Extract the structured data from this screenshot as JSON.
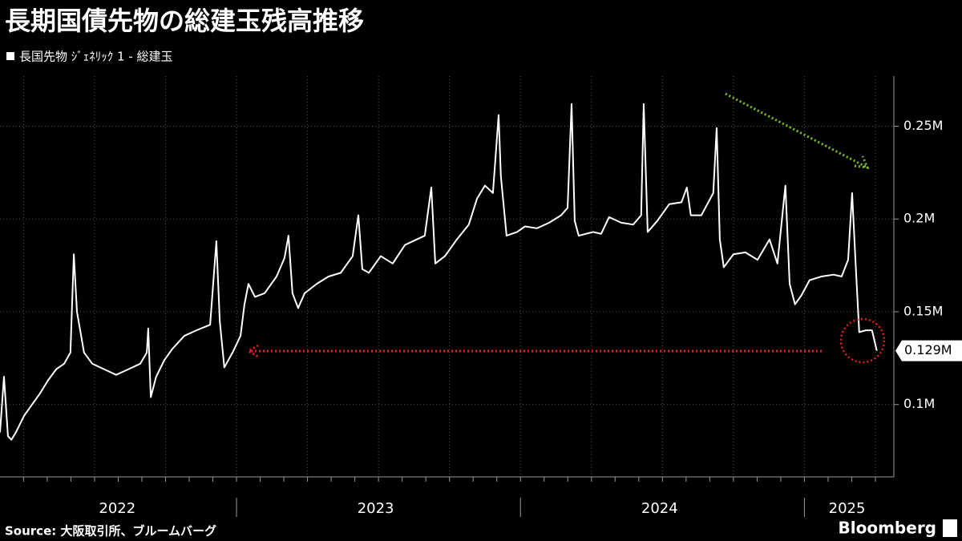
{
  "chart_data": {
    "type": "line",
    "title": "長期国債先物の総建玉残高推移",
    "series": [
      {
        "name": "長国先物 ｼﾞｪﾈﾘｯｸ 1 - 総建玉",
        "color": "#ffffff",
        "x": [
          2022.167,
          2022.181,
          2022.195,
          2022.207,
          2022.223,
          2022.252,
          2022.28,
          2022.308,
          2022.336,
          2022.365,
          2022.393,
          2022.415,
          2022.427,
          2022.438,
          2022.463,
          2022.492,
          2022.534,
          2022.576,
          2022.619,
          2022.661,
          2022.684,
          2022.689,
          2022.698,
          2022.717,
          2022.746,
          2022.774,
          2022.816,
          2022.859,
          2022.907,
          2022.929,
          2022.941,
          2022.957,
          2022.986,
          2023.014,
          2023.028,
          2023.042,
          2023.065,
          2023.099,
          2023.141,
          2023.169,
          2023.183,
          2023.197,
          2023.217,
          2023.24,
          2023.282,
          2023.324,
          2023.367,
          2023.409,
          2023.429,
          2023.443,
          2023.466,
          2023.508,
          2023.55,
          2023.593,
          2023.635,
          2023.663,
          2023.686,
          2023.7,
          2023.734,
          2023.776,
          2023.818,
          2023.847,
          2023.875,
          2023.903,
          2023.923,
          2023.931,
          2023.951,
          2023.988,
          2024.016,
          2024.058,
          2024.101,
          2024.143,
          2024.166,
          2024.18,
          2024.191,
          2024.205,
          2024.256,
          2024.284,
          2024.312,
          2024.355,
          2024.397,
          2024.425,
          2024.434,
          2024.448,
          2024.482,
          2024.524,
          2024.567,
          2024.586,
          2024.6,
          2024.637,
          2024.679,
          2024.691,
          2024.702,
          2024.716,
          2024.75,
          2024.792,
          2024.835,
          2024.877,
          2024.905,
          2024.933,
          2024.948,
          2024.967,
          2024.99,
          2025.018,
          2025.06,
          2025.103,
          2025.131,
          2025.154,
          2025.168,
          2025.182,
          2025.193,
          2025.216,
          2025.238,
          2025.255
        ],
        "values": [
          0.085,
          0.115,
          0.083,
          0.081,
          0.085,
          0.094,
          0.1,
          0.106,
          0.113,
          0.119,
          0.122,
          0.128,
          0.181,
          0.15,
          0.128,
          0.122,
          0.119,
          0.116,
          0.119,
          0.122,
          0.128,
          0.141,
          0.104,
          0.115,
          0.124,
          0.13,
          0.137,
          0.14,
          0.143,
          0.188,
          0.145,
          0.12,
          0.128,
          0.137,
          0.154,
          0.165,
          0.158,
          0.16,
          0.169,
          0.179,
          0.191,
          0.16,
          0.152,
          0.16,
          0.165,
          0.169,
          0.171,
          0.18,
          0.202,
          0.173,
          0.171,
          0.18,
          0.176,
          0.186,
          0.189,
          0.191,
          0.217,
          0.176,
          0.18,
          0.189,
          0.197,
          0.211,
          0.218,
          0.214,
          0.256,
          0.223,
          0.191,
          0.193,
          0.196,
          0.195,
          0.198,
          0.202,
          0.206,
          0.262,
          0.199,
          0.191,
          0.193,
          0.192,
          0.201,
          0.198,
          0.197,
          0.202,
          0.262,
          0.193,
          0.199,
          0.208,
          0.209,
          0.217,
          0.202,
          0.202,
          0.214,
          0.249,
          0.189,
          0.174,
          0.181,
          0.182,
          0.178,
          0.189,
          0.176,
          0.218,
          0.165,
          0.154,
          0.159,
          0.167,
          0.169,
          0.17,
          0.169,
          0.178,
          0.214,
          0.171,
          0.139,
          0.14,
          0.14,
          0.129
        ]
      }
    ],
    "last_value_label": "0.129M",
    "xlim": [
      2022.167,
      2025.315
    ],
    "xticks": [
      {
        "value": 2022.58,
        "label": "2022"
      },
      {
        "value": 2023.49,
        "label": "2023"
      },
      {
        "value": 2024.49,
        "label": "2024"
      },
      {
        "value": 2025.15,
        "label": "2025"
      }
    ],
    "ylim": [
      0.061,
      0.277
    ],
    "yticks": [
      {
        "value": 0.1,
        "label": "0.1M"
      },
      {
        "value": 0.15,
        "label": "0.15M"
      },
      {
        "value": 0.2,
        "label": "0.2M"
      },
      {
        "value": 0.25,
        "label": "0.25M"
      }
    ],
    "grid": true,
    "source": "Source: 大阪取引所、ブルームバーグ",
    "brand": "Bloomberg"
  }
}
